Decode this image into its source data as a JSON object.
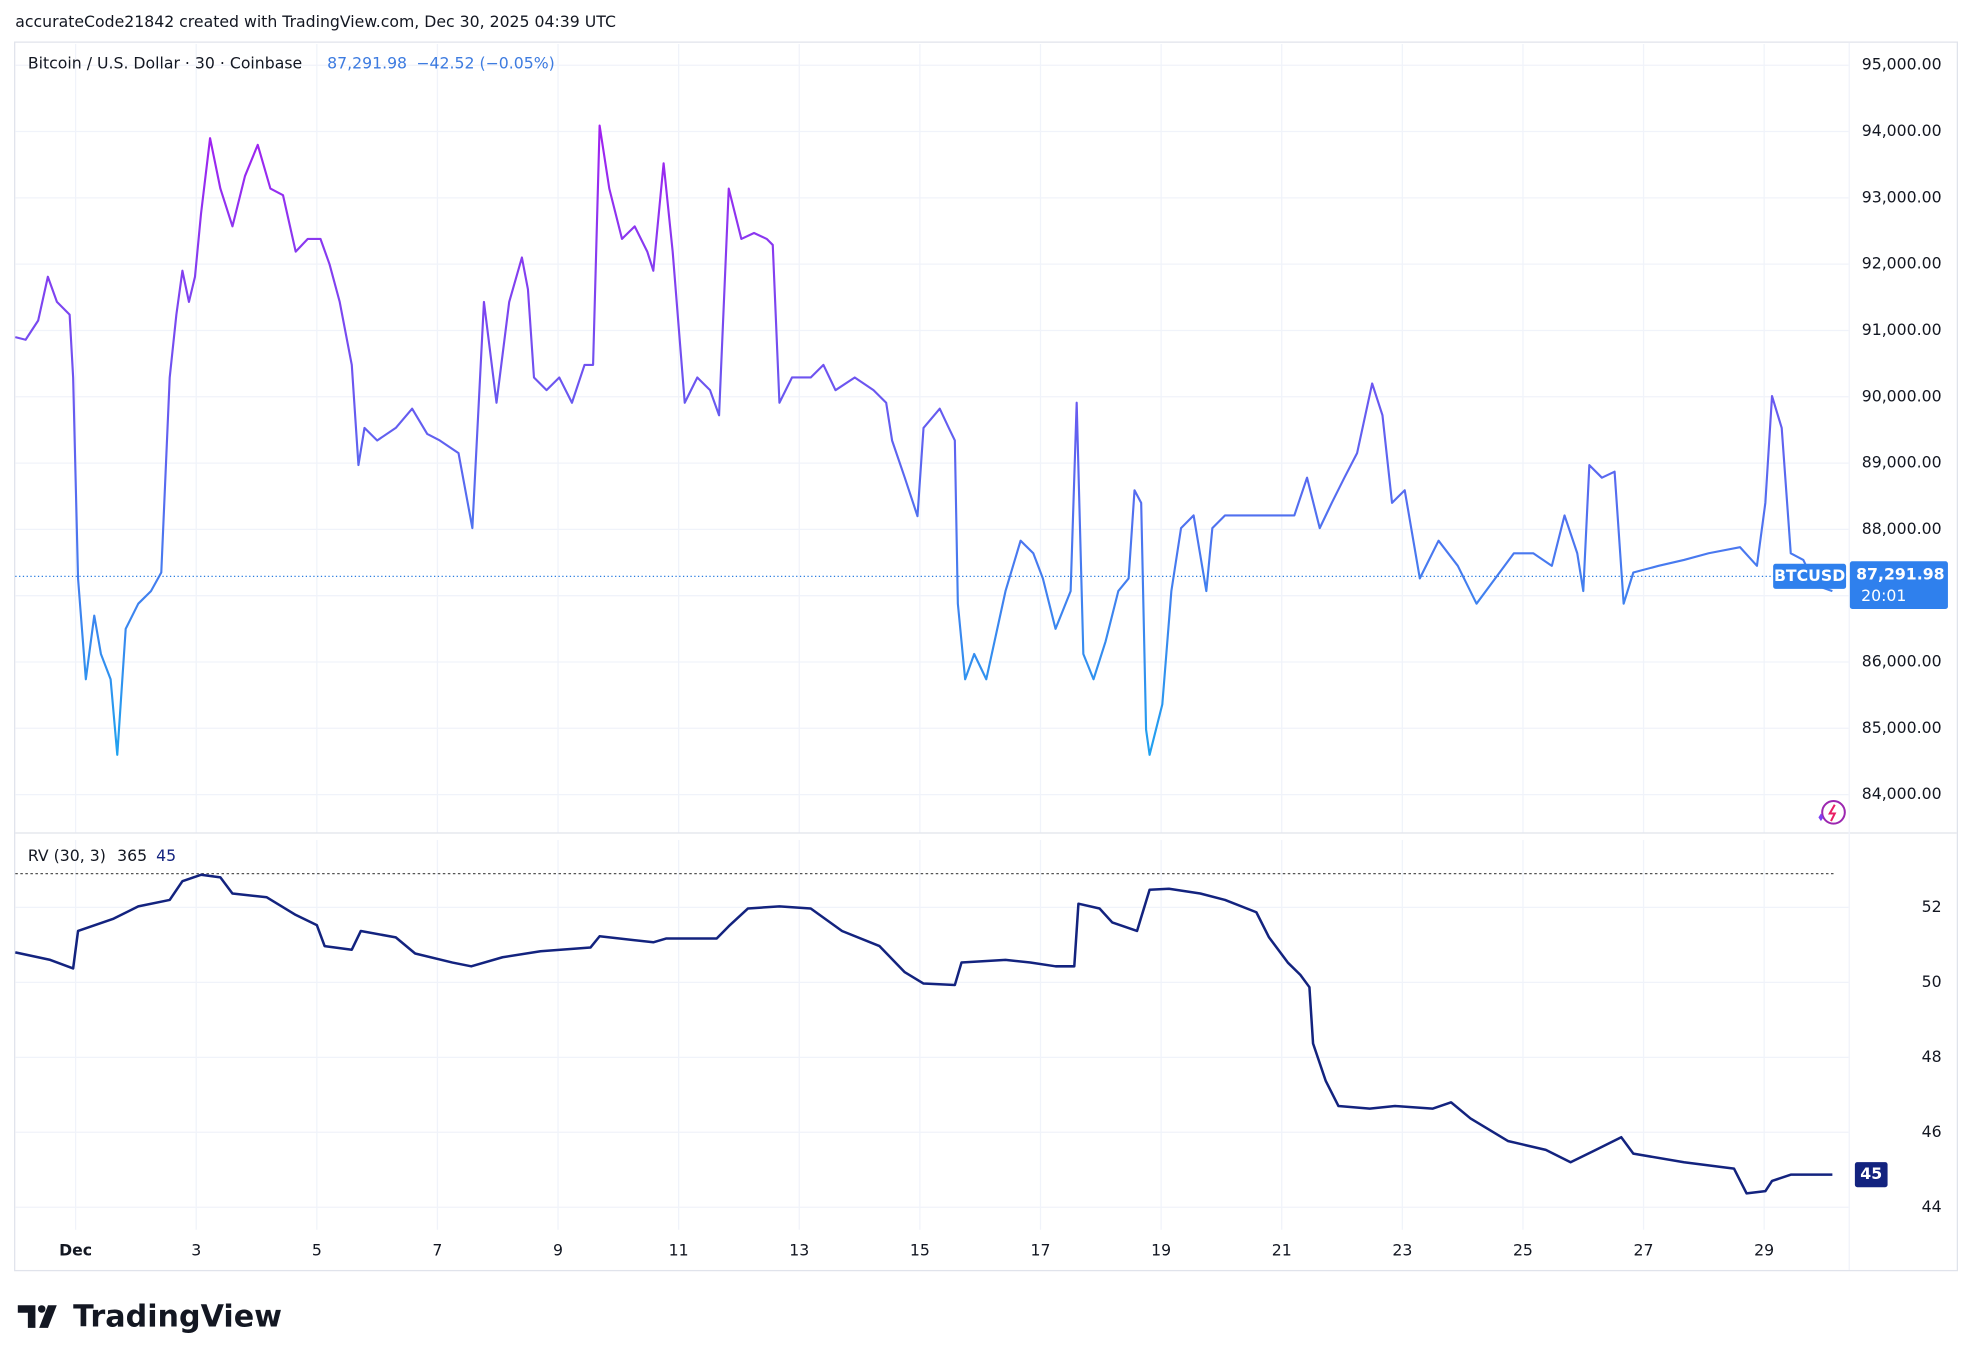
{
  "header": "accurateCode21842 created with TradingView.com, Dec 30, 2025 04:39 UTC",
  "footer": "TradingView",
  "chart_data": [
    {
      "type": "line",
      "title": "Bitcoin / U.S. Dollar · 30 · Coinbase",
      "last_price": {
        "value": 87291.98,
        "label": "87,291.98"
      },
      "change": {
        "value": -42.52,
        "label": "−42.52 (−0.05%)"
      },
      "countdown": "20:01",
      "gradient": [
        "#a31ff0",
        "#1fa2ef"
      ],
      "xlim": [
        0,
        30.4
      ],
      "ylim": [
        83430,
        95320
      ],
      "yticks": [
        {
          "value": 84000,
          "label": "84,000.00"
        },
        {
          "value": 85000,
          "label": "85,000.00"
        },
        {
          "value": 86000,
          "label": "86,000.00"
        },
        {
          "value": 87000,
          "label": "87,000.00"
        },
        {
          "value": 88000,
          "label": "88,000.00"
        },
        {
          "value": 89000,
          "label": "89,000.00"
        },
        {
          "value": 90000,
          "label": "90,000.00"
        },
        {
          "value": 91000,
          "label": "91,000.00"
        },
        {
          "value": 92000,
          "label": "92,000.00"
        },
        {
          "value": 93000,
          "label": "93,000.00"
        },
        {
          "value": 94000,
          "label": "94,000.00"
        },
        {
          "value": 95000,
          "label": "95,000.00"
        }
      ],
      "grid": true,
      "series": [
        {
          "name": "BTCUSD",
          "x": [
            0,
            0.17,
            0.38,
            0.54,
            0.69,
            0.9,
            0.96,
            1.04,
            1.17,
            1.31,
            1.42,
            1.58,
            1.69,
            1.83,
            2.04,
            2.25,
            2.42,
            2.56,
            2.67,
            2.77,
            2.88,
            2.98,
            3.08,
            3.23,
            3.4,
            3.6,
            3.81,
            4.02,
            4.23,
            4.44,
            4.65,
            4.85,
            5.06,
            5.21,
            5.38,
            5.58,
            5.69,
            5.79,
            6,
            6.31,
            6.58,
            6.83,
            7.04,
            7.35,
            7.58,
            7.77,
            7.98,
            8.19,
            8.4,
            8.5,
            8.6,
            8.81,
            9.02,
            9.23,
            9.44,
            9.58,
            9.69,
            9.85,
            10.06,
            10.27,
            10.48,
            10.58,
            10.75,
            10.9,
            11.1,
            11.31,
            11.52,
            11.67,
            11.83,
            12.04,
            12.25,
            12.46,
            12.56,
            12.67,
            12.88,
            13.19,
            13.4,
            13.6,
            13.92,
            14.23,
            14.44,
            14.54,
            14.75,
            14.96,
            15.06,
            15.33,
            15.48,
            15.58,
            15.63,
            15.75,
            15.9,
            16.1,
            16.42,
            16.67,
            16.88,
            17.04,
            17.25,
            17.5,
            17.6,
            17.71,
            17.88,
            18.08,
            18.29,
            18.46,
            18.56,
            18.67,
            18.75,
            18.81,
            19.02,
            19.17,
            19.33,
            19.54,
            19.75,
            19.85,
            20.06,
            20.38,
            20.69,
            21,
            21.21,
            21.42,
            21.63,
            21.83,
            22.04,
            22.25,
            22.5,
            22.67,
            22.83,
            23.04,
            23.29,
            23.6,
            23.92,
            24.23,
            24.54,
            24.85,
            25.17,
            25.48,
            25.69,
            25.9,
            26,
            26.1,
            26.31,
            26.52,
            26.67,
            26.83,
            27.25,
            27.67,
            28.08,
            28.6,
            28.88,
            29.02,
            29.13,
            29.29,
            29.44,
            29.65,
            29.85,
            30.13
          ],
          "values": [
            90900,
            90860,
            91150,
            91810,
            91430,
            91240,
            90290,
            87260,
            85740,
            86700,
            86120,
            85740,
            84600,
            86500,
            86880,
            87070,
            87350,
            90290,
            91240,
            91900,
            91430,
            91810,
            92760,
            93900,
            93140,
            92570,
            93330,
            93800,
            93140,
            93040,
            92190,
            92380,
            92380,
            92000,
            91430,
            90480,
            88970,
            89530,
            89340,
            89530,
            89820,
            89440,
            89340,
            89150,
            88020,
            91430,
            89910,
            91430,
            92100,
            91620,
            90290,
            90100,
            90290,
            89910,
            90480,
            90480,
            94090,
            93140,
            92380,
            92570,
            92190,
            91900,
            93520,
            92190,
            89910,
            90290,
            90100,
            89720,
            93140,
            92380,
            92470,
            92380,
            92290,
            89910,
            90290,
            90290,
            90480,
            90100,
            90290,
            90100,
            89910,
            89340,
            88780,
            88200,
            89530,
            89820,
            89530,
            89340,
            86880,
            85740,
            86120,
            85740,
            87070,
            87830,
            87640,
            87260,
            86500,
            87070,
            89910,
            86120,
            85740,
            86310,
            87070,
            87260,
            88590,
            88400,
            84980,
            84600,
            85360,
            87070,
            88020,
            88210,
            87070,
            88020,
            88210,
            88210,
            88210,
            88210,
            88210,
            88780,
            88020,
            88400,
            88780,
            89150,
            90200,
            89720,
            88400,
            88590,
            87260,
            87830,
            87450,
            86880,
            87260,
            87640,
            87640,
            87450,
            88210,
            87640,
            87070,
            88970,
            88780,
            88870,
            86880,
            87350,
            87450,
            87540,
            87640,
            87730,
            87450,
            88400,
            90010,
            89530,
            87640,
            87540,
            87160,
            87070
          ]
        }
      ]
    },
    {
      "type": "line",
      "title": "RV (30, 3)",
      "length": 365,
      "last_label": "45",
      "reference_line": 52.9,
      "color": "#13237f",
      "xlim": [
        0,
        30.4
      ],
      "ylim": [
        43.4,
        53.8
      ],
      "yticks": [
        44,
        46,
        48,
        50,
        52
      ],
      "xticks": [
        {
          "value": 1,
          "label": "Dec"
        },
        3,
        5,
        7,
        9,
        11,
        13,
        15,
        17,
        19,
        21,
        23,
        25,
        27,
        29
      ],
      "grid": true,
      "series": [
        {
          "name": "RV",
          "x": [
            0,
            0.58,
            0.96,
            1.04,
            1.63,
            2.04,
            2.56,
            2.77,
            3.08,
            3.4,
            3.6,
            4.17,
            4.65,
            5,
            5.13,
            5.58,
            5.73,
            6.31,
            6.63,
            7.25,
            7.56,
            8.08,
            8.71,
            9.54,
            9.69,
            10.58,
            10.79,
            11.63,
            11.83,
            12.15,
            12.67,
            13.19,
            13.71,
            14.33,
            14.75,
            15.06,
            15.58,
            15.69,
            16.42,
            16.83,
            17.25,
            17.56,
            17.63,
            17.98,
            18.19,
            18.6,
            18.81,
            19.13,
            19.65,
            20.06,
            20.58,
            20.79,
            21.1,
            21.31,
            21.46,
            21.52,
            21.73,
            21.94,
            22.46,
            22.88,
            23.5,
            23.81,
            24.13,
            24.75,
            25.38,
            25.79,
            26.21,
            26.63,
            26.83,
            27.67,
            28.5,
            28.71,
            29.02,
            29.13,
            29.44,
            30.13
          ],
          "values": [
            50.8,
            50.6,
            50.37,
            51.37,
            51.7,
            52.03,
            52.2,
            52.7,
            52.87,
            52.8,
            52.37,
            52.27,
            51.8,
            51.53,
            50.97,
            50.87,
            51.37,
            51.2,
            50.77,
            50.53,
            50.43,
            50.67,
            50.83,
            50.93,
            51.23,
            51.07,
            51.17,
            51.17,
            51.5,
            51.97,
            52.03,
            51.97,
            51.37,
            50.97,
            50.27,
            49.97,
            49.93,
            50.53,
            50.6,
            50.53,
            50.43,
            50.43,
            52.1,
            51.97,
            51.6,
            51.37,
            52.47,
            52.5,
            52.37,
            52.2,
            51.87,
            51.2,
            50.53,
            50.2,
            49.87,
            48.37,
            47.37,
            46.7,
            46.63,
            46.7,
            46.63,
            46.8,
            46.37,
            45.77,
            45.53,
            45.2,
            45.53,
            45.87,
            45.43,
            45.2,
            45.03,
            44.37,
            44.43,
            44.7,
            44.87,
            44.87
          ]
        }
      ]
    }
  ]
}
